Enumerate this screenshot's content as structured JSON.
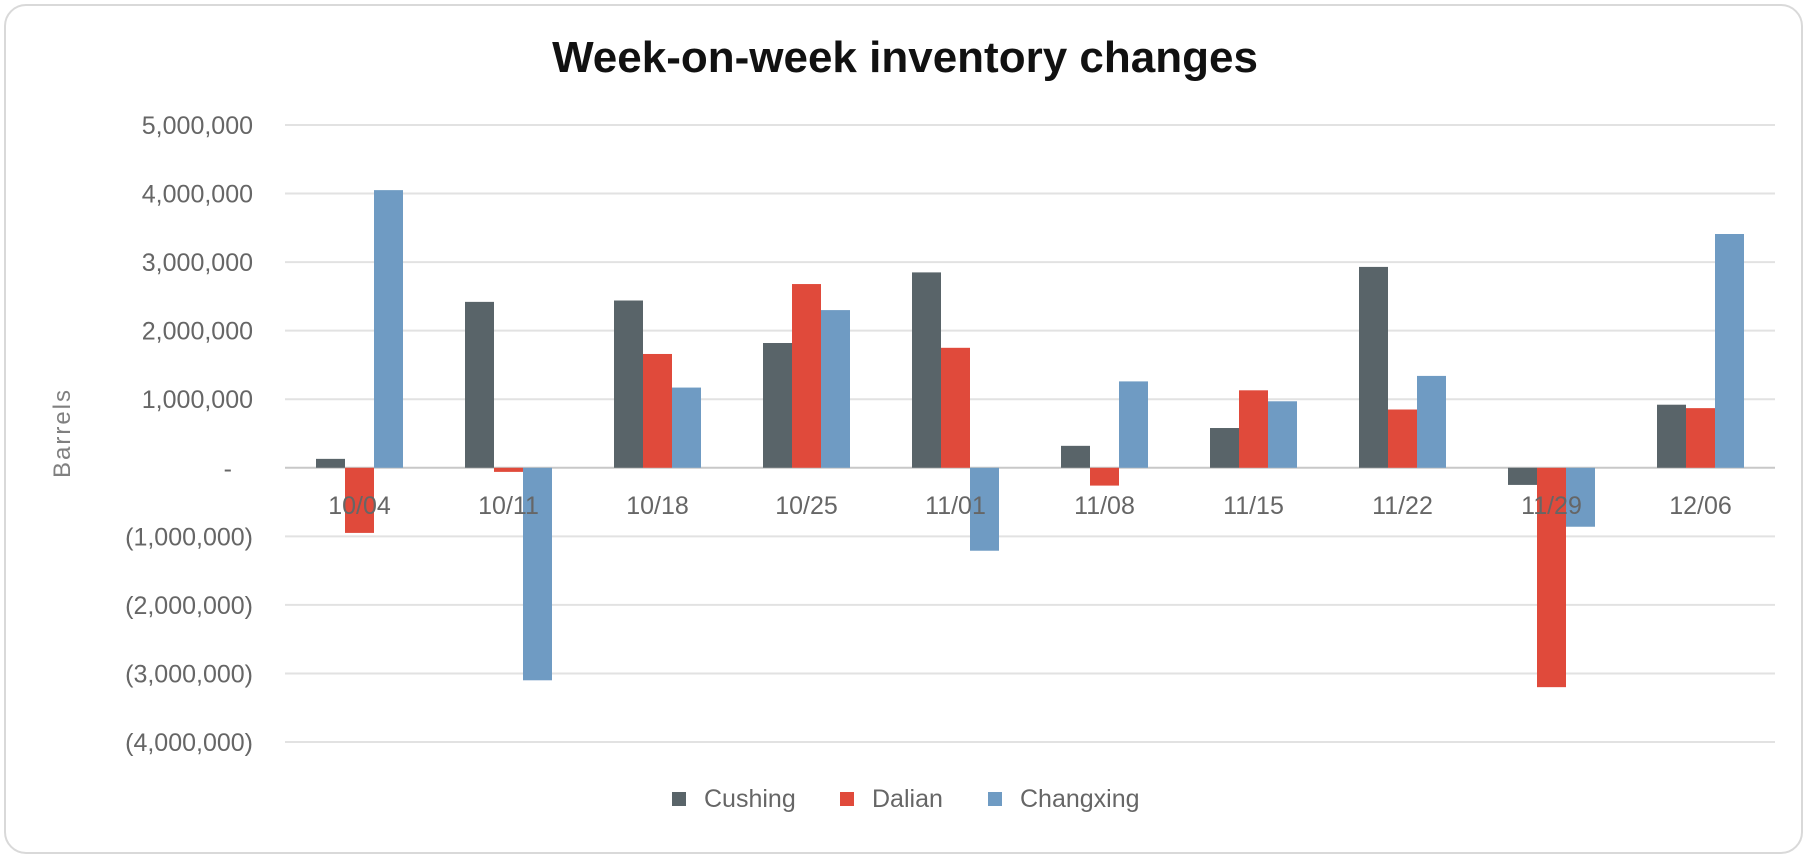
{
  "chart_data": {
    "type": "bar",
    "title": "Week-on-week inventory changes",
    "xlabel": "",
    "ylabel": "Barrels",
    "ylim": [
      -4000000,
      5000000
    ],
    "yticks": [
      5000000,
      4000000,
      3000000,
      2000000,
      1000000,
      0,
      -1000000,
      -2000000,
      -3000000,
      -4000000
    ],
    "ytick_labels": [
      "5,000,000",
      "4,000,000",
      "3,000,000",
      "2,000,000",
      "1,000,000",
      "-",
      "(1,000,000)",
      "(2,000,000)",
      "(3,000,000)",
      "(4,000,000)"
    ],
    "categories": [
      "10/04",
      "10/11",
      "10/18",
      "10/25",
      "11/01",
      "11/08",
      "11/15",
      "11/22",
      "11/29",
      "12/06"
    ],
    "series": [
      {
        "name": "Cushing",
        "color": "#596469",
        "values": [
          130000,
          2420000,
          2440000,
          1820000,
          2850000,
          320000,
          580000,
          2930000,
          -250000,
          920000
        ]
      },
      {
        "name": "Dalian",
        "color": "#e04a3b",
        "values": [
          -950000,
          -60000,
          1660000,
          2680000,
          1750000,
          -260000,
          1130000,
          850000,
          -3200000,
          870000
        ]
      },
      {
        "name": "Changxing",
        "color": "#6f9bc3",
        "values": [
          4050000,
          -3100000,
          1170000,
          2300000,
          -1210000,
          1260000,
          970000,
          1340000,
          -860000,
          3410000
        ]
      }
    ],
    "grid": true,
    "legend": "bottom"
  }
}
